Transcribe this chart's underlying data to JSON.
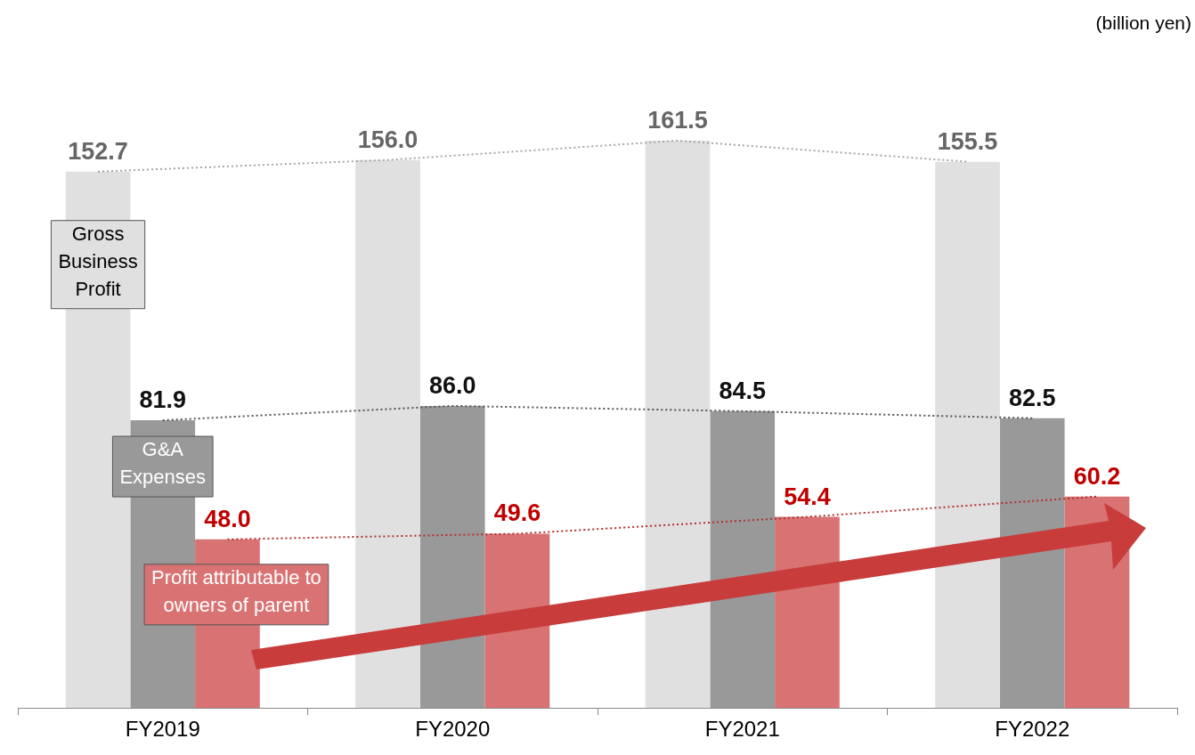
{
  "chart_data": {
    "type": "bar",
    "categories": [
      "FY2019",
      "FY2020",
      "FY2021",
      "FY2022"
    ],
    "series": [
      {
        "name": "Gross Business Profit",
        "color": "#e0e0e0",
        "values": [
          152.7,
          156.0,
          161.5,
          155.5
        ],
        "value_labels": [
          "152.7",
          "156.0",
          "161.5",
          "155.5"
        ]
      },
      {
        "name": "G&A Expenses",
        "color": "#999999",
        "values": [
          81.9,
          86.0,
          84.5,
          82.5
        ],
        "value_labels": [
          "81.9",
          "86.0",
          "84.5",
          "82.5"
        ]
      },
      {
        "name": "Profit attributable to owners of parent",
        "color": "#d97272",
        "values": [
          48.0,
          49.6,
          54.4,
          60.2
        ],
        "value_labels": [
          "48.0",
          "49.6",
          "54.4",
          "60.2"
        ]
      },
      {
        "type": "line",
        "color": "#a6a6a6",
        "line_style": "dotted",
        "values": [
          152.7,
          156.0,
          161.5,
          155.5
        ]
      },
      {
        "type": "line",
        "color": "#555555",
        "line_style": "dotted",
        "values": [
          81.9,
          86.0,
          84.5,
          82.5
        ]
      },
      {
        "type": "line",
        "color": "#b03030",
        "line_style": "dotted",
        "values": [
          48.0,
          49.6,
          54.4,
          60.2
        ]
      }
    ],
    "legend": false,
    "marker": "none",
    "annotations": [
      "(billion yen)"
    ]
  }
}
